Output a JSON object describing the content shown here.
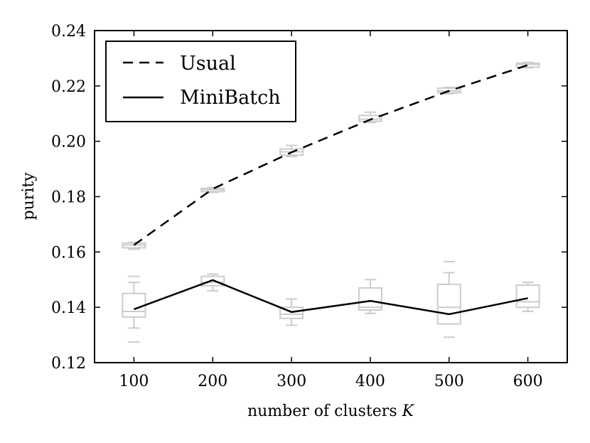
{
  "chart_data": {
    "type": "line",
    "x": [
      100,
      200,
      300,
      400,
      500,
      600
    ],
    "xticks": [
      "100",
      "200",
      "300",
      "400",
      "500",
      "600"
    ],
    "yticks": [
      "0.12",
      "0.14",
      "0.16",
      "0.18",
      "0.20",
      "0.22",
      "0.24"
    ],
    "xlim": [
      50,
      650
    ],
    "ylim": [
      0.12,
      0.24
    ],
    "xlabel": "number of clusters ",
    "xlabel_var": "K",
    "ylabel": "purity",
    "grid": false,
    "legend_position": "top-left",
    "series": [
      {
        "name": "Usual",
        "style": "dashed",
        "color": "#000000",
        "values": [
          0.1625,
          0.1828,
          0.196,
          0.2078,
          0.2182,
          0.2275
        ],
        "boxes": [
          {
            "whislo": 0.161,
            "q1": 0.1615,
            "med": 0.1625,
            "q3": 0.1632,
            "whishi": 0.1635
          },
          {
            "whislo": 0.1815,
            "q1": 0.1818,
            "med": 0.1825,
            "q3": 0.183,
            "whishi": 0.1833
          },
          {
            "whislo": 0.1945,
            "q1": 0.195,
            "med": 0.1962,
            "q3": 0.1972,
            "whishi": 0.1985
          },
          {
            "whislo": 0.2068,
            "q1": 0.2072,
            "med": 0.208,
            "q3": 0.2093,
            "whishi": 0.2105
          },
          {
            "whislo": 0.2172,
            "q1": 0.2175,
            "med": 0.2182,
            "q3": 0.2192,
            "whishi": 0.2195
          },
          {
            "whislo": 0.2265,
            "q1": 0.2268,
            "med": 0.2278,
            "q3": 0.2282,
            "whishi": 0.2285
          }
        ]
      },
      {
        "name": "MiniBatch",
        "style": "solid",
        "color": "#000000",
        "values": [
          0.1393,
          0.1498,
          0.1383,
          0.1423,
          0.1375,
          0.1433
        ],
        "boxes": [
          {
            "whislo": 0.1325,
            "q1": 0.1365,
            "med": 0.1385,
            "q3": 0.145,
            "whishi": 0.149,
            "outliers": [
              0.1275,
              0.1512
            ]
          },
          {
            "whislo": 0.146,
            "q1": 0.1478,
            "med": 0.149,
            "q3": 0.1512,
            "whishi": 0.152
          },
          {
            "whislo": 0.1335,
            "q1": 0.136,
            "med": 0.1375,
            "q3": 0.14,
            "whishi": 0.143
          },
          {
            "whislo": 0.1378,
            "q1": 0.139,
            "med": 0.14,
            "q3": 0.147,
            "whishi": 0.15
          },
          {
            "whislo": 0.134,
            "q1": 0.134,
            "med": 0.14,
            "q3": 0.1483,
            "whishi": 0.1525,
            "outliers": [
              0.1292,
              0.1565
            ]
          },
          {
            "whislo": 0.1385,
            "q1": 0.14,
            "med": 0.142,
            "q3": 0.148,
            "whishi": 0.149
          }
        ]
      }
    ],
    "box_color": "#cccccc"
  }
}
